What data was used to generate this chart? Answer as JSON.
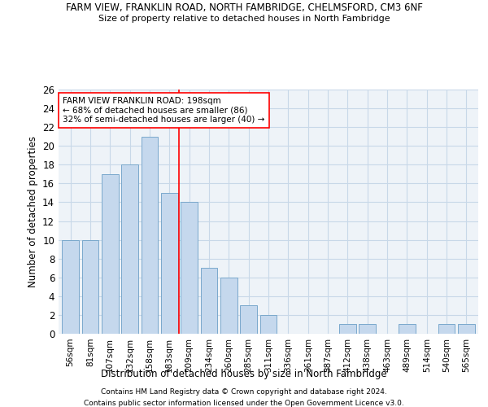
{
  "title": "FARM VIEW, FRANKLIN ROAD, NORTH FAMBRIDGE, CHELMSFORD, CM3 6NF",
  "subtitle": "Size of property relative to detached houses in North Fambridge",
  "xlabel": "Distribution of detached houses by size in North Fambridge",
  "ylabel": "Number of detached properties",
  "categories": [
    "56sqm",
    "81sqm",
    "107sqm",
    "132sqm",
    "158sqm",
    "183sqm",
    "209sqm",
    "234sqm",
    "260sqm",
    "285sqm",
    "311sqm",
    "336sqm",
    "361sqm",
    "387sqm",
    "412sqm",
    "438sqm",
    "463sqm",
    "489sqm",
    "514sqm",
    "540sqm",
    "565sqm"
  ],
  "values": [
    10,
    10,
    17,
    18,
    21,
    15,
    14,
    7,
    6,
    3,
    2,
    0,
    0,
    0,
    1,
    1,
    0,
    1,
    0,
    1,
    1
  ],
  "bar_color": "#c5d8ed",
  "bar_edge_color": "#7aa8cc",
  "grid_color": "#c8d8e8",
  "background_color": "#eef3f8",
  "vline_x": 5.5,
  "vline_color": "red",
  "annotation_text": "FARM VIEW FRANKLIN ROAD: 198sqm\n← 68% of detached houses are smaller (86)\n32% of semi-detached houses are larger (40) →",
  "annotation_box_color": "white",
  "annotation_box_edge": "red",
  "ylim": [
    0,
    26
  ],
  "yticks": [
    0,
    2,
    4,
    6,
    8,
    10,
    12,
    14,
    16,
    18,
    20,
    22,
    24,
    26
  ],
  "footnote1": "Contains HM Land Registry data © Crown copyright and database right 2024.",
  "footnote2": "Contains public sector information licensed under the Open Government Licence v3.0."
}
